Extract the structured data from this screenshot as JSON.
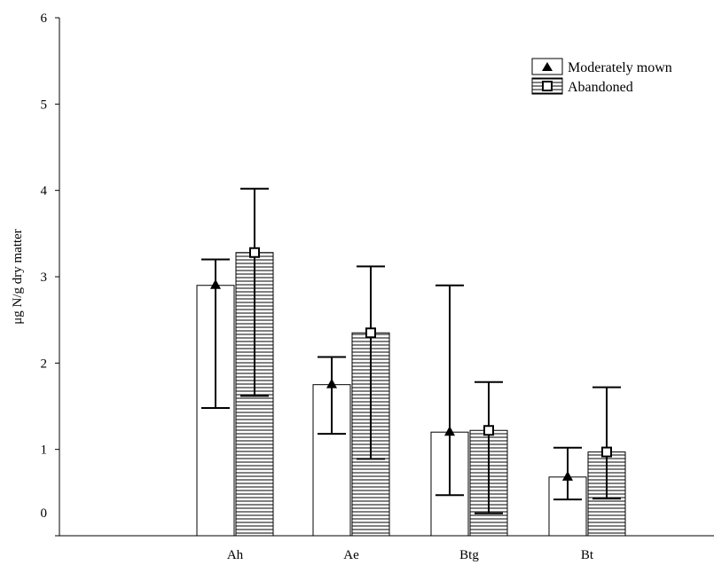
{
  "chart_data": {
    "type": "bar",
    "title": "",
    "xlabel": "",
    "ylabel": "μg N/g dry matter",
    "ylim": [
      0,
      6
    ],
    "yticks": [
      0,
      1,
      2,
      3,
      4,
      5,
      6
    ],
    "categories": [
      "Ah",
      "Ae",
      "Btg",
      "Bt"
    ],
    "grid": false,
    "legend_position": "top-right",
    "series": [
      {
        "name": "Moderately mown",
        "fill": "plain",
        "marker": "filled-triangle",
        "values": [
          2.9,
          1.75,
          1.2,
          0.68
        ],
        "error_low": [
          1.48,
          1.18,
          0.47,
          0.42
        ],
        "error_high": [
          3.2,
          2.07,
          2.9,
          1.02
        ]
      },
      {
        "name": "Abandoned",
        "fill": "horizontal-hatch",
        "marker": "open-square",
        "values": [
          3.28,
          2.35,
          1.22,
          0.97
        ],
        "error_low": [
          1.62,
          0.89,
          0.26,
          0.43
        ],
        "error_high": [
          4.02,
          3.12,
          1.78,
          1.72
        ]
      }
    ]
  }
}
